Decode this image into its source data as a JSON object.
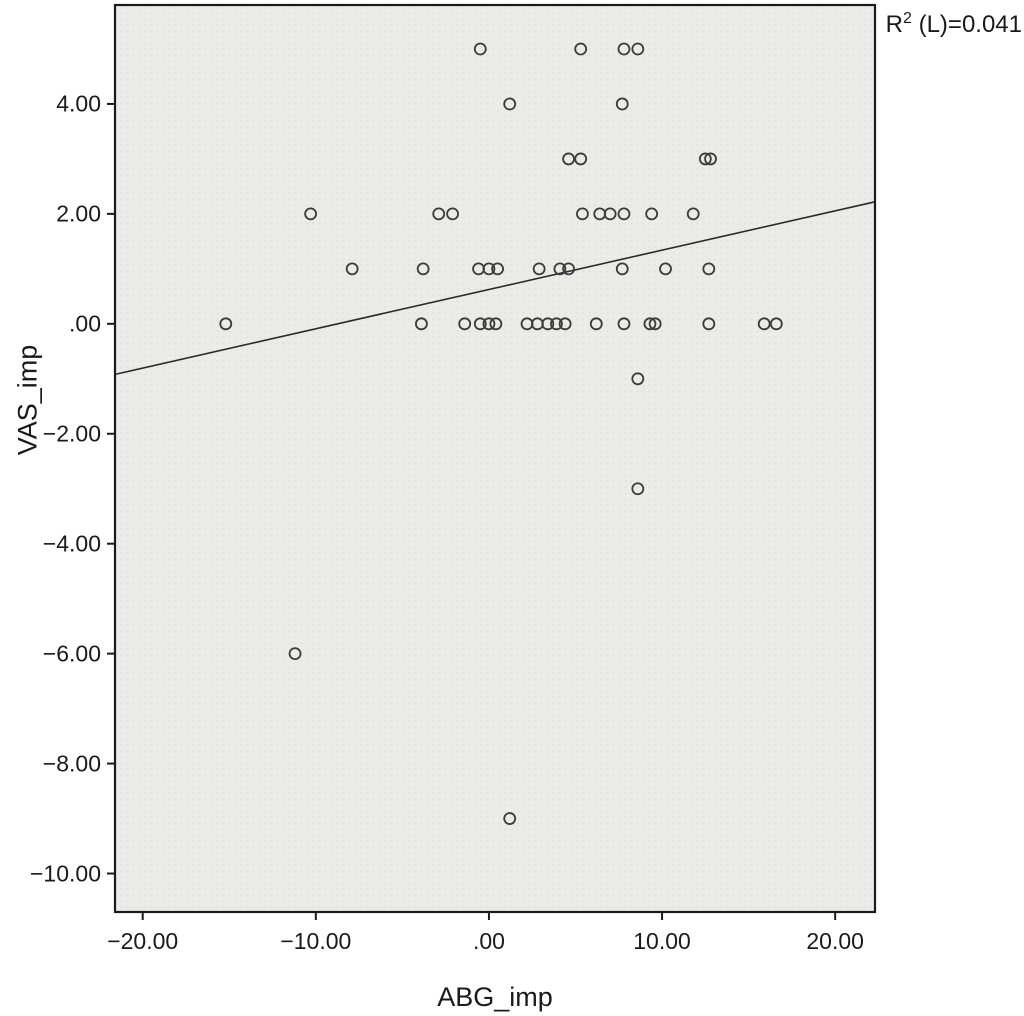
{
  "chart_data": {
    "type": "scatter",
    "title": "",
    "xlabel": "ABG_imp",
    "ylabel": "VAS_imp",
    "xlim": [
      -21.6,
      22.3
    ],
    "ylim": [
      -10.7,
      5.8
    ],
    "grid": false,
    "annotation": {
      "base": "R",
      "sup": "2",
      "rest": " (L)=0.041"
    },
    "x_ticks": [
      {
        "v": -20,
        "label": "−20.00"
      },
      {
        "v": -10,
        "label": "−10.00"
      },
      {
        "v": 0,
        "label": ".00"
      },
      {
        "v": 10,
        "label": "10.00"
      },
      {
        "v": 20,
        "label": "20.00"
      }
    ],
    "y_ticks": [
      {
        "v": 4,
        "label": "4.00"
      },
      {
        "v": 2,
        "label": "2.00"
      },
      {
        "v": 0,
        "label": ".00"
      },
      {
        "v": -2,
        "label": "−2.00"
      },
      {
        "v": -4,
        "label": "−4.00"
      },
      {
        "v": -6,
        "label": "−6.00"
      },
      {
        "v": -8,
        "label": "−8.00"
      },
      {
        "v": -10,
        "label": "−10.00"
      }
    ],
    "points": [
      [
        -0.5,
        5
      ],
      [
        5.3,
        5
      ],
      [
        7.8,
        5
      ],
      [
        8.6,
        5
      ],
      [
        1.2,
        4
      ],
      [
        7.7,
        4
      ],
      [
        4.6,
        3
      ],
      [
        5.3,
        3
      ],
      [
        12.5,
        3
      ],
      [
        12.8,
        3
      ],
      [
        -10.3,
        2
      ],
      [
        -2.9,
        2
      ],
      [
        -2.1,
        2
      ],
      [
        5.4,
        2
      ],
      [
        6.4,
        2
      ],
      [
        7.0,
        2
      ],
      [
        7.8,
        2
      ],
      [
        9.4,
        2
      ],
      [
        11.8,
        2
      ],
      [
        -7.9,
        1
      ],
      [
        -3.8,
        1
      ],
      [
        -0.6,
        1
      ],
      [
        0.0,
        1
      ],
      [
        0.5,
        1
      ],
      [
        2.9,
        1
      ],
      [
        4.1,
        1
      ],
      [
        4.6,
        1
      ],
      [
        7.7,
        1
      ],
      [
        10.2,
        1
      ],
      [
        12.7,
        1
      ],
      [
        -15.2,
        0
      ],
      [
        -3.9,
        0
      ],
      [
        -1.4,
        0
      ],
      [
        -0.5,
        0
      ],
      [
        0.0,
        0
      ],
      [
        0.4,
        0
      ],
      [
        2.2,
        0
      ],
      [
        2.8,
        0
      ],
      [
        3.4,
        0
      ],
      [
        3.9,
        0
      ],
      [
        4.4,
        0
      ],
      [
        6.2,
        0
      ],
      [
        7.8,
        0
      ],
      [
        9.3,
        0
      ],
      [
        9.6,
        0
      ],
      [
        12.7,
        0
      ],
      [
        15.9,
        0
      ],
      [
        16.6,
        0
      ],
      [
        8.6,
        -1
      ],
      [
        8.6,
        -3
      ],
      [
        -11.2,
        -6
      ],
      [
        1.2,
        -9
      ]
    ],
    "fit_line": {
      "x1": -21.6,
      "y1": -0.92,
      "x2": 22.3,
      "y2": 2.22
    },
    "colors": {
      "plot_bg": "#ebebe9",
      "plot_dot": "#dfdfdd",
      "frame": "#1a1a1a",
      "marker": "#3c3c3c",
      "line": "#2b2b2b",
      "text": "#1a1a1a"
    }
  }
}
